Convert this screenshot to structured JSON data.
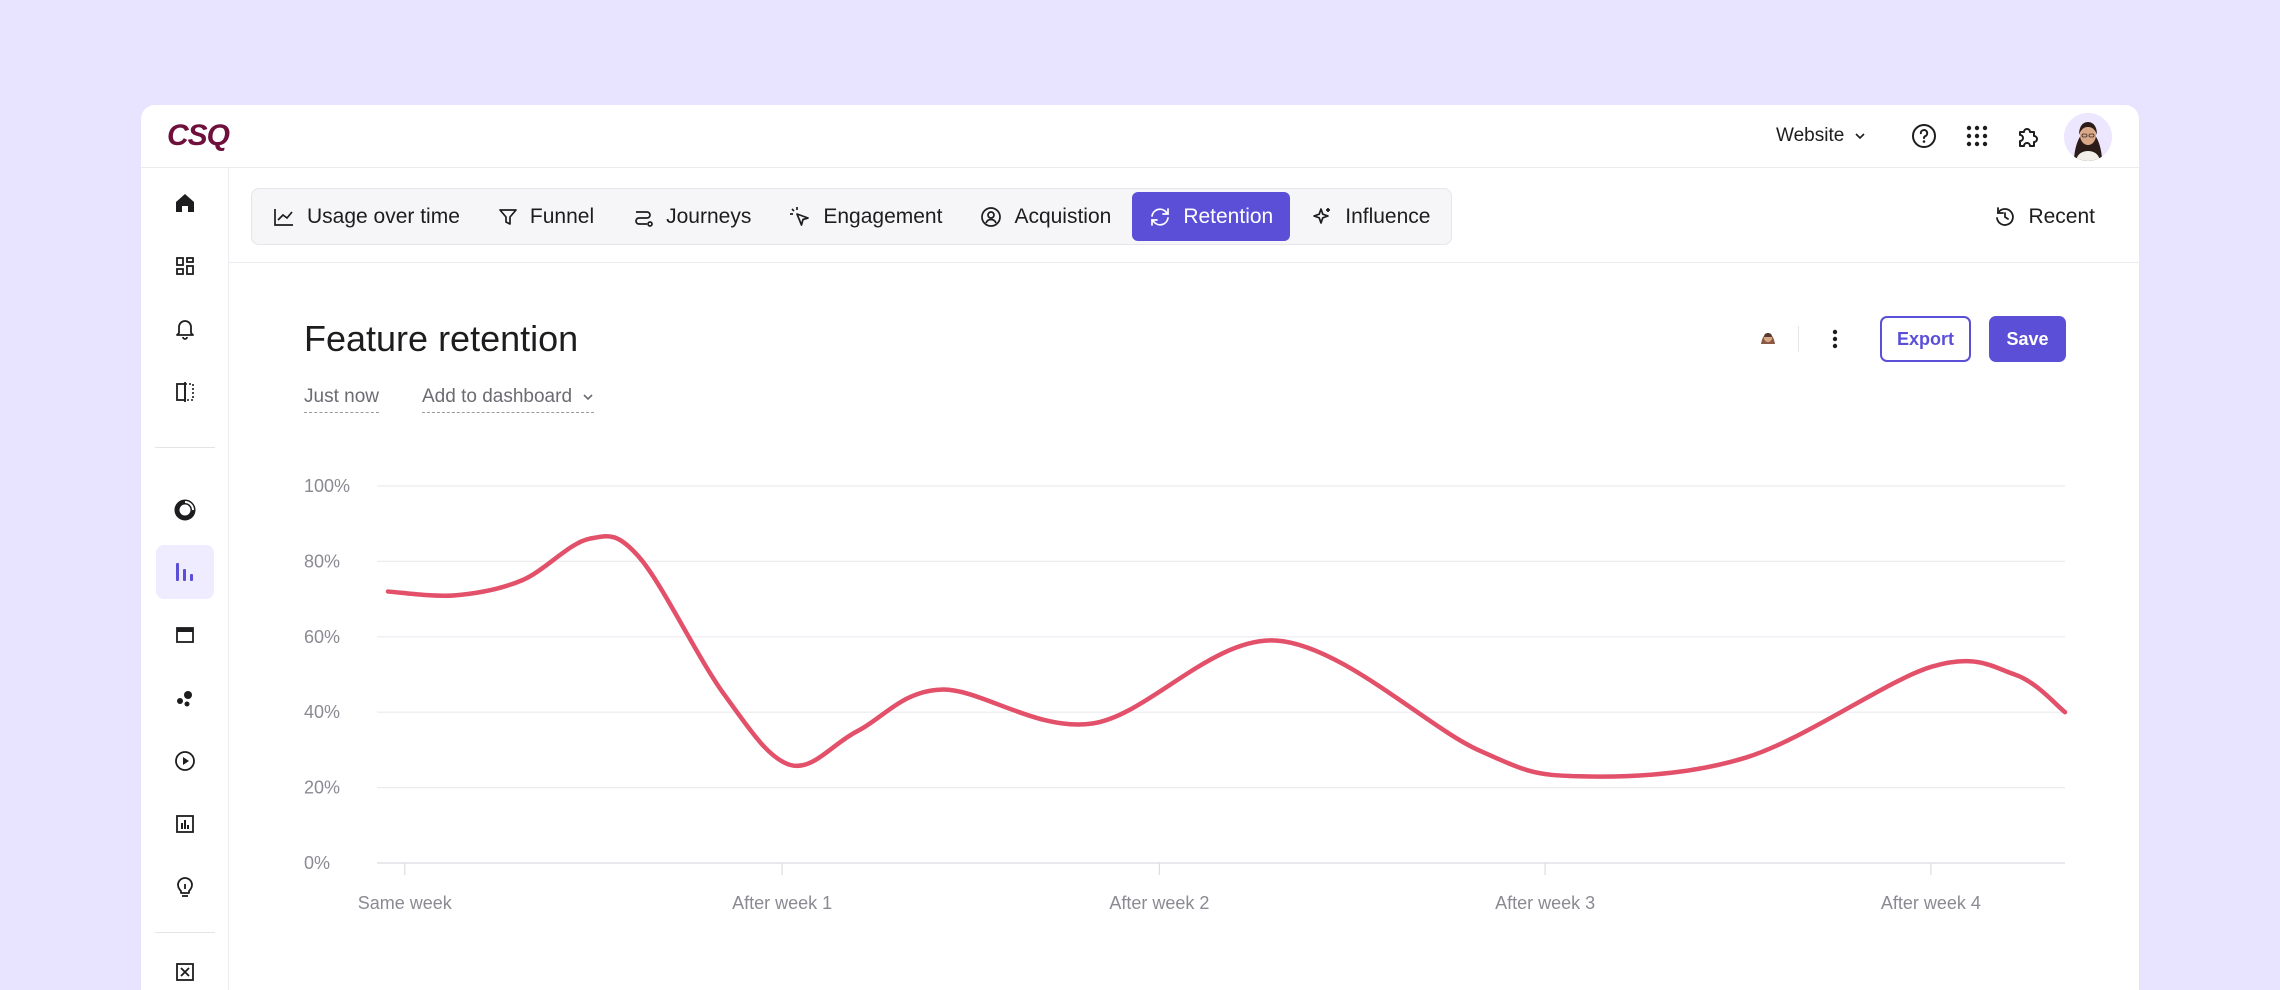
{
  "app": {
    "logo_text": "CSQ",
    "brand_color": "#6f0f3b",
    "accent_color": "#5b4fd8"
  },
  "topbar": {
    "site_selector": "Website",
    "icons": [
      "help-icon",
      "apps-grid-icon",
      "puzzle-icon"
    ],
    "avatar": "user-avatar"
  },
  "sidebar": {
    "items": [
      {
        "icon": "home-icon"
      },
      {
        "icon": "dashboard-icon"
      },
      {
        "icon": "bell-icon"
      },
      {
        "icon": "compare-icon"
      },
      {
        "icon": "donut-chart-icon"
      },
      {
        "icon": "bar-chart-icon",
        "active": true
      },
      {
        "icon": "browser-window-icon"
      },
      {
        "icon": "dots-cluster-icon"
      },
      {
        "icon": "play-icon"
      },
      {
        "icon": "report-icon"
      },
      {
        "icon": "lightbulb-icon"
      },
      {
        "icon": "app-logo-icon"
      }
    ]
  },
  "tabs": [
    {
      "label": "Usage over time",
      "icon": "line-chart-icon"
    },
    {
      "label": "Funnel",
      "icon": "funnel-icon"
    },
    {
      "label": "Journeys",
      "icon": "route-icon"
    },
    {
      "label": "Engagement",
      "icon": "cursor-click-icon"
    },
    {
      "label": "Acquistion",
      "icon": "target-user-icon"
    },
    {
      "label": "Retention",
      "icon": "refresh-icon",
      "active": true
    },
    {
      "label": "Influence",
      "icon": "sparkle-icon"
    }
  ],
  "recent_label": "Recent",
  "report": {
    "title": "Feature retention",
    "updated": "Just now",
    "add_to_dashboard": "Add to dashboard",
    "export_label": "Export",
    "save_label": "Save"
  },
  "chart_data": {
    "type": "line",
    "x": [
      "Same week",
      "",
      "",
      "",
      "After week 1",
      "",
      "",
      "",
      "After week 2",
      "",
      "",
      "",
      "After week 3",
      "",
      "",
      "",
      "After week 4",
      ""
    ],
    "y_ticks": [
      "0%",
      "20%",
      "40%",
      "60%",
      "80%",
      "100%"
    ],
    "ylim": [
      0,
      100
    ],
    "x_tick_labels": [
      "Same week",
      "After week 1",
      "After week 2",
      "After week 3",
      "After week 4"
    ],
    "series": [
      {
        "color": "#e2506a",
        "points": [
          {
            "x": 0.0,
            "y": 72
          },
          {
            "x": 0.4,
            "y": 71
          },
          {
            "x": 0.8,
            "y": 75
          },
          {
            "x": 1.2,
            "y": 86
          },
          {
            "x": 1.5,
            "y": 81
          },
          {
            "x": 2.0,
            "y": 45
          },
          {
            "x": 2.4,
            "y": 26
          },
          {
            "x": 2.8,
            "y": 35
          },
          {
            "x": 3.3,
            "y": 46
          },
          {
            "x": 4.2,
            "y": 37
          },
          {
            "x": 5.3,
            "y": 59
          },
          {
            "x": 6.5,
            "y": 30
          },
          {
            "x": 7.1,
            "y": 23
          },
          {
            "x": 8.1,
            "y": 28
          },
          {
            "x": 9.2,
            "y": 52
          },
          {
            "x": 9.7,
            "y": 50
          },
          {
            "x": 10.0,
            "y": 40
          }
        ]
      }
    ],
    "grid": true
  }
}
